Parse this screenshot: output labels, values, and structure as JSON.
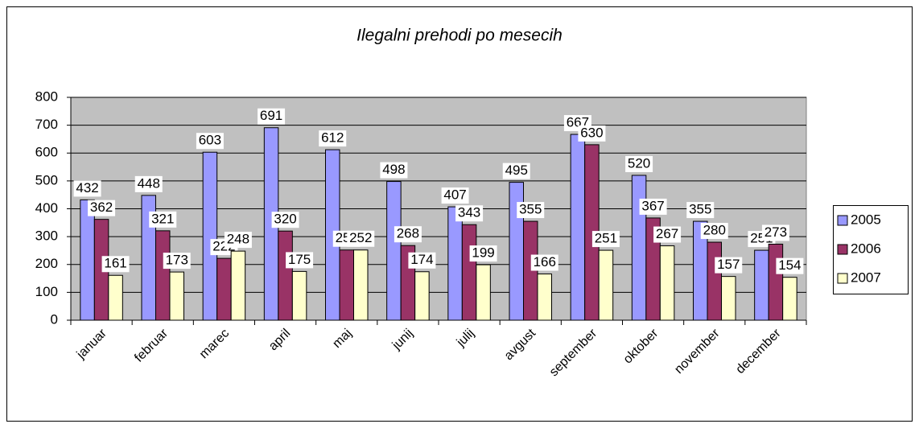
{
  "chart_data": {
    "type": "bar",
    "title": "Ilegalni prehodi po mesecih",
    "categories": [
      "januar",
      "februar",
      "marec",
      "april",
      "maj",
      "junij",
      "julij",
      "avgust",
      "september",
      "oktober",
      "november",
      "december"
    ],
    "series": [
      {
        "name": "2005",
        "color": "#9999ff",
        "values": [
          432,
          448,
          603,
          691,
          612,
          498,
          407,
          495,
          667,
          520,
          355,
          251
        ]
      },
      {
        "name": "2006",
        "color": "#993366",
        "values": [
          362,
          321,
          222,
          320,
          252,
          268,
          343,
          355,
          630,
          367,
          280,
          273
        ]
      },
      {
        "name": "2007",
        "color": "#ffffcc",
        "values": [
          161,
          173,
          248,
          175,
          252,
          174,
          199,
          166,
          251,
          267,
          157,
          154
        ]
      }
    ],
    "ylim": [
      0,
      800
    ],
    "yticks": [
      0,
      100,
      200,
      300,
      400,
      500,
      600,
      700,
      800
    ],
    "grid": true,
    "legend": "right"
  }
}
